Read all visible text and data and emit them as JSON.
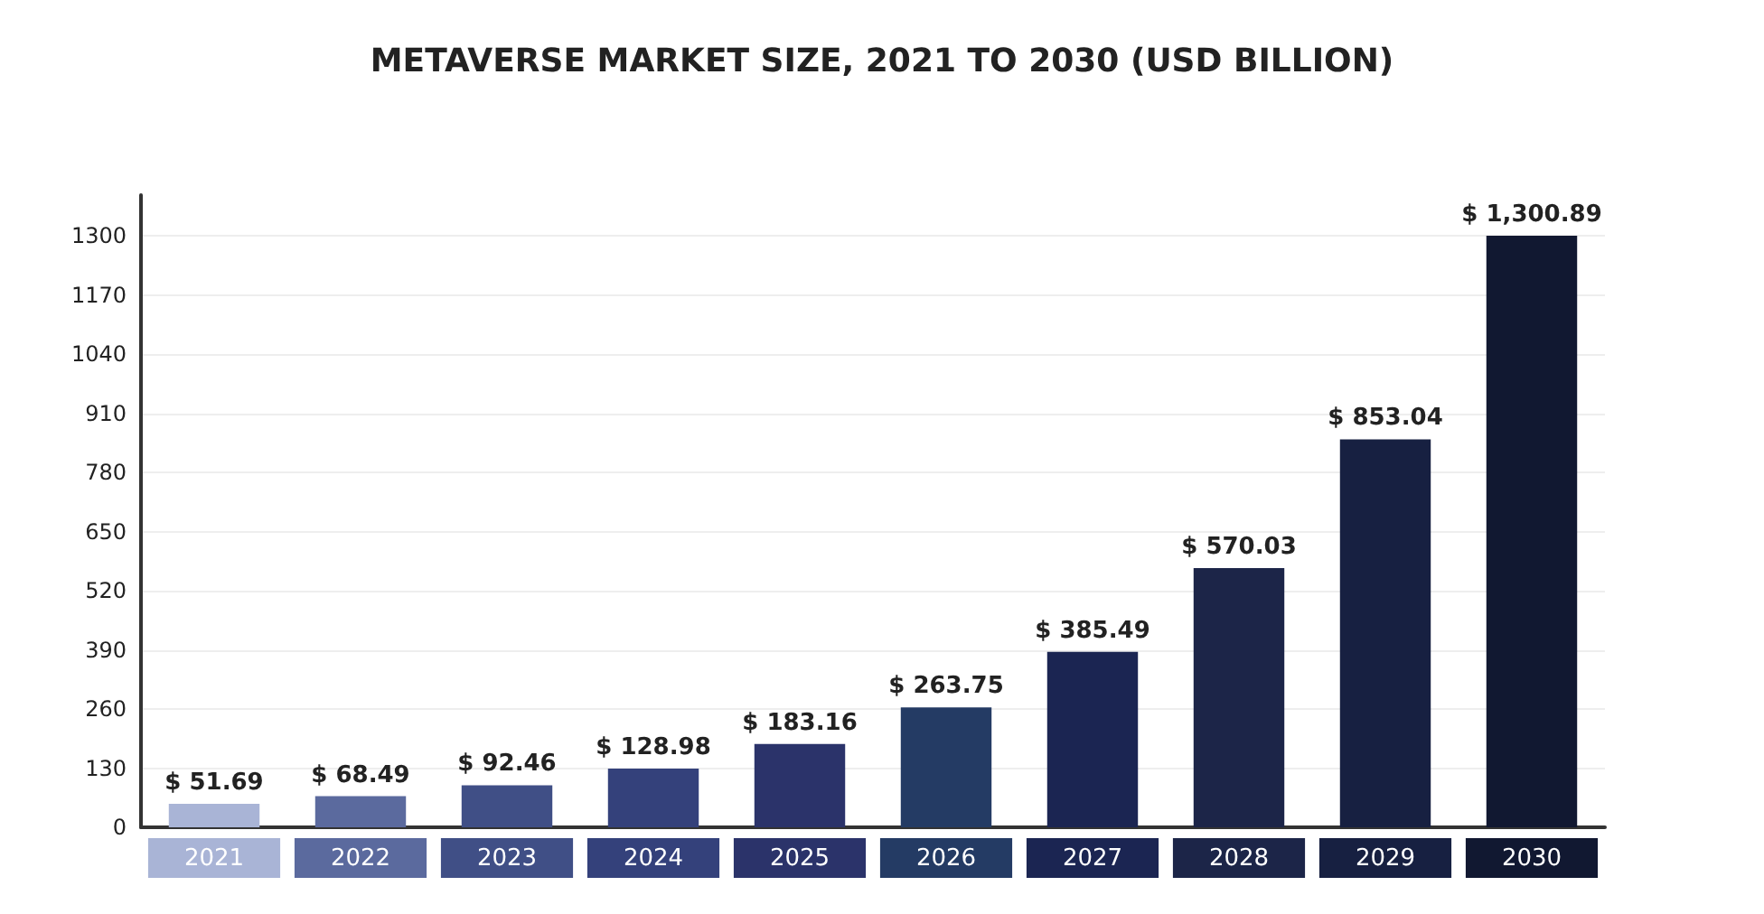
{
  "chart_data": {
    "type": "bar",
    "title": "METAVERSE MARKET SIZE, 2021 TO 2030 (USD BILLION)",
    "categories": [
      "2021",
      "2022",
      "2023",
      "2024",
      "2025",
      "2026",
      "2027",
      "2028",
      "2029",
      "2030"
    ],
    "values": [
      51.69,
      68.49,
      92.46,
      128.98,
      183.16,
      263.75,
      385.49,
      570.03,
      853.04,
      1300.89
    ],
    "value_labels": [
      "$ 51.69",
      "$ 68.49",
      "$ 92.46",
      "$ 128.98",
      "$ 183.16",
      "$ 263.75",
      "$ 385.49",
      "$ 570.03",
      "$ 853.04",
      "$ 1,300.89"
    ],
    "colors": [
      "#a9b4d6",
      "#5b6a9e",
      "#404f86",
      "#34417b",
      "#2b336a",
      "#243b64",
      "#1b2552",
      "#1c2548",
      "#172041",
      "#111831"
    ],
    "ylim": [
      0,
      1390
    ],
    "yticks": [
      0,
      130,
      260,
      390,
      520,
      650,
      780,
      910,
      1040,
      1170,
      1300
    ],
    "grid": "y"
  }
}
